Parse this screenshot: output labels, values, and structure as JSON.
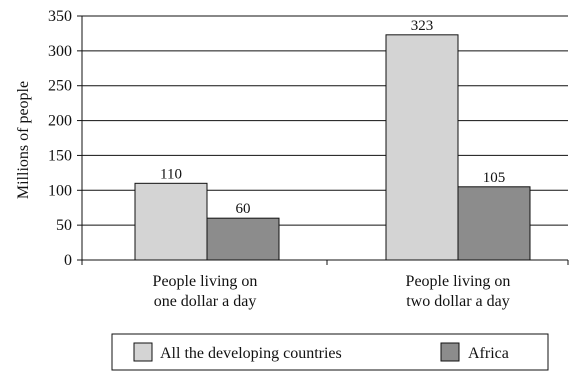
{
  "chart_data": {
    "type": "bar",
    "title": "",
    "ylabel": "Millions of people",
    "xlabel": "",
    "ylim": [
      0,
      350
    ],
    "yticks": [
      0,
      50,
      100,
      150,
      200,
      250,
      300,
      350
    ],
    "grid": "horizontal",
    "legend_position": "bottom",
    "categories": [
      [
        "People living on",
        "one dollar a day"
      ],
      [
        "People living on",
        "two dollar a day"
      ]
    ],
    "series": [
      {
        "name": "All the developing countries",
        "values": [
          110,
          323
        ],
        "color": "#d4d4d4"
      },
      {
        "name": "Africa",
        "values": [
          60,
          105
        ],
        "color": "#8c8c8c"
      }
    ],
    "data_labels": [
      [
        "110",
        "323"
      ],
      [
        "60",
        "105"
      ]
    ]
  }
}
